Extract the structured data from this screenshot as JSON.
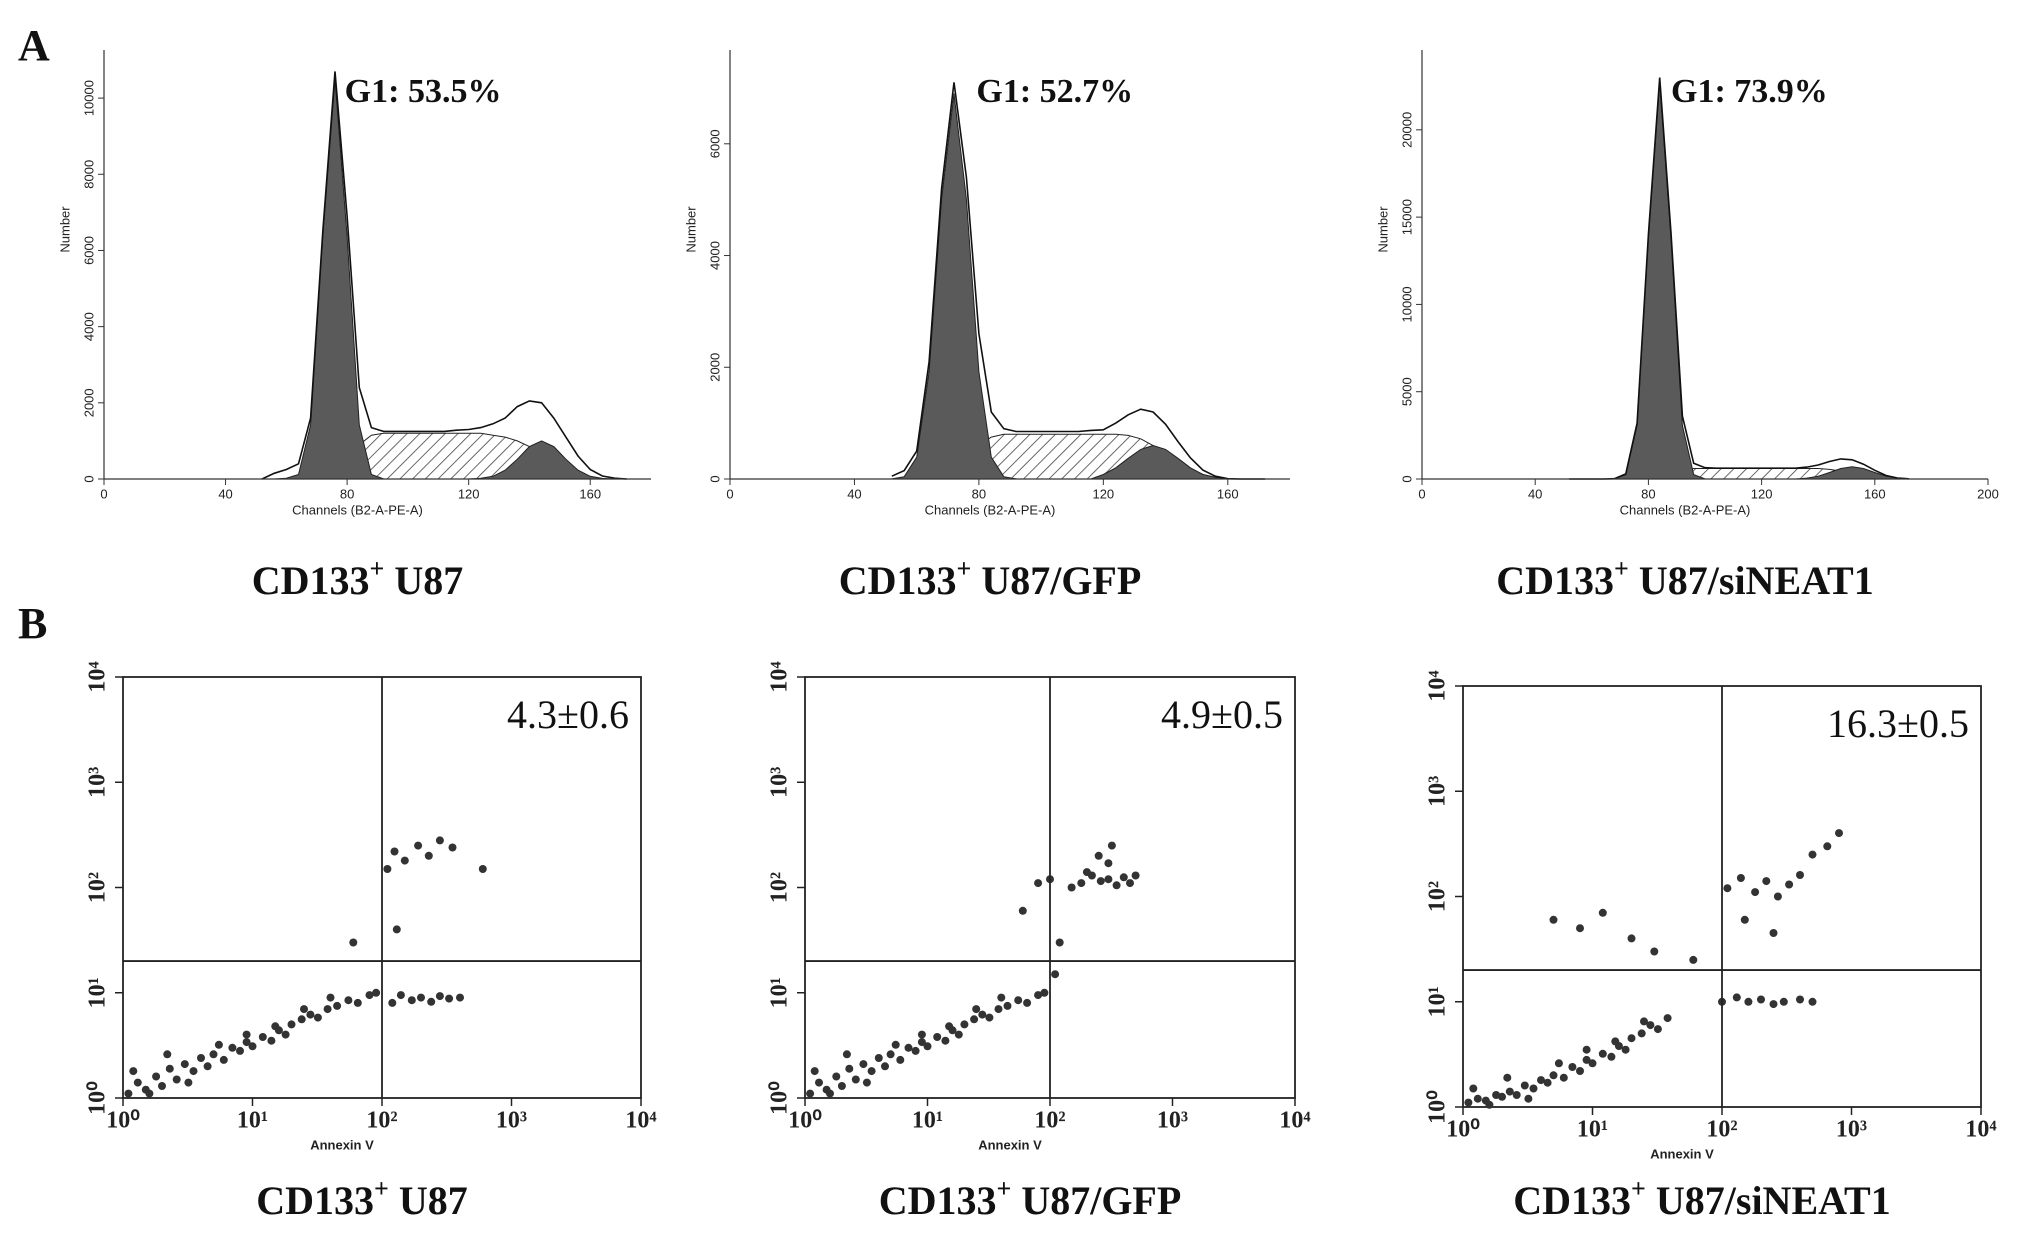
{
  "panel_labels": {
    "a": "A",
    "b": "B"
  },
  "chart_data": [
    {
      "type": "area",
      "annotation": "G1: 53.5%",
      "caption": {
        "text": "CD133",
        "sup": "+",
        "suffix": " U87"
      },
      "xlabel": "Channels (B2-A-PE-A)",
      "ylabel": "Number",
      "xlim": [
        0,
        180
      ],
      "xticks": [
        0,
        40,
        80,
        120,
        160
      ],
      "ylim": [
        0,
        11000
      ],
      "yticks": [
        0,
        2000,
        4000,
        6000,
        8000,
        10000
      ],
      "x": [
        52,
        56,
        60,
        64,
        68,
        72,
        76,
        80,
        84,
        88,
        92,
        96,
        100,
        104,
        108,
        112,
        116,
        120,
        124,
        128,
        132,
        136,
        140,
        144,
        148,
        152,
        156,
        160,
        164,
        168,
        172
      ],
      "series": [
        {
          "fill": "hatch",
          "color": "#444444",
          "values": [
            0,
            0,
            0,
            0,
            0,
            50,
            200,
            500,
            900,
            1150,
            1200,
            1200,
            1200,
            1200,
            1200,
            1200,
            1200,
            1200,
            1200,
            1150,
            1100,
            1000,
            850,
            650,
            450,
            250,
            100,
            30,
            0,
            0,
            0
          ]
        },
        {
          "fill": "solid",
          "color": "#5a5a5a",
          "values": [
            0,
            0,
            20,
            117,
            1420,
            6370,
            10500,
            6370,
            1420,
            117,
            3,
            0,
            0,
            0,
            0,
            0,
            0,
            0,
            0,
            0,
            0,
            0,
            0,
            0,
            0,
            0,
            0,
            0,
            0,
            0,
            0
          ]
        },
        {
          "fill": "solid",
          "color": "#5a5a5a",
          "values": [
            0,
            0,
            0,
            0,
            0,
            0,
            0,
            0,
            0,
            0,
            0,
            0,
            0,
            0,
            0,
            0,
            0,
            0,
            20,
            70,
            230,
            520,
            850,
            1000,
            850,
            520,
            230,
            70,
            15,
            0,
            0
          ]
        },
        {
          "fill": "none",
          "color": "#111111",
          "values": [
            0,
            150,
            250,
            400,
            1600,
            6500,
            10700,
            6900,
            2400,
            1350,
            1250,
            1250,
            1250,
            1250,
            1250,
            1250,
            1280,
            1300,
            1350,
            1450,
            1600,
            1900,
            2050,
            2000,
            1600,
            1100,
            600,
            250,
            80,
            20,
            0
          ]
        }
      ]
    },
    {
      "type": "area",
      "annotation": "G1: 52.7%",
      "caption": {
        "text": "CD133",
        "sup": "+",
        "suffix": " U87/GFP"
      },
      "xlabel": "Channels (B2-A-PE-A)",
      "ylabel": "Number",
      "xlim": [
        0,
        180
      ],
      "xticks": [
        0,
        40,
        80,
        120,
        160
      ],
      "ylim": [
        0,
        7500
      ],
      "yticks": [
        0,
        2000,
        4000,
        6000
      ],
      "x": [
        52,
        56,
        60,
        64,
        68,
        72,
        76,
        80,
        84,
        88,
        92,
        96,
        100,
        104,
        108,
        112,
        116,
        120,
        124,
        128,
        132,
        136,
        140,
        144,
        148,
        152,
        156,
        160,
        164,
        168,
        172
      ],
      "series": [
        {
          "fill": "hatch",
          "color": "#444444",
          "values": [
            0,
            0,
            0,
            0,
            0,
            100,
            300,
            600,
            750,
            800,
            800,
            800,
            800,
            800,
            800,
            800,
            800,
            800,
            800,
            780,
            720,
            600,
            450,
            300,
            180,
            80,
            20,
            0,
            0,
            0,
            0
          ]
        },
        {
          "fill": "solid",
          "color": "#5a5a5a",
          "values": [
            2,
            41,
            390,
            1920,
            5010,
            6900,
            5010,
            1920,
            390,
            41,
            2,
            0,
            0,
            0,
            0,
            0,
            0,
            0,
            0,
            0,
            0,
            0,
            0,
            0,
            0,
            0,
            0,
            0,
            0,
            0,
            0
          ]
        },
        {
          "fill": "solid",
          "color": "#5a5a5a",
          "values": [
            0,
            0,
            0,
            0,
            0,
            0,
            0,
            0,
            0,
            0,
            0,
            0,
            0,
            0,
            0,
            0,
            0,
            80,
            200,
            370,
            530,
            600,
            530,
            370,
            200,
            80,
            30,
            5,
            0,
            0,
            0
          ]
        },
        {
          "fill": "none",
          "color": "#111111",
          "values": [
            50,
            150,
            500,
            2100,
            5200,
            7100,
            5400,
            2600,
            1200,
            900,
            850,
            850,
            850,
            850,
            850,
            850,
            870,
            880,
            1000,
            1150,
            1250,
            1200,
            980,
            670,
            380,
            160,
            50,
            5,
            0,
            0,
            0
          ]
        }
      ]
    },
    {
      "type": "area",
      "annotation": "G1: 73.9%",
      "caption": {
        "text": "CD133",
        "sup": "+",
        "suffix": " U87/siNEAT1"
      },
      "xlabel": "Channels (B2-A-PE-A)",
      "ylabel": "Number",
      "xlim": [
        0,
        200
      ],
      "xticks": [
        0,
        40,
        80,
        120,
        160,
        200
      ],
      "ylim": [
        0,
        24000
      ],
      "yticks": [
        0,
        5000,
        10000,
        15000,
        20000
      ],
      "x": [
        52,
        56,
        60,
        64,
        68,
        72,
        76,
        80,
        84,
        88,
        92,
        96,
        100,
        104,
        108,
        112,
        116,
        120,
        124,
        128,
        132,
        136,
        140,
        144,
        148,
        152,
        156,
        160,
        164,
        168,
        172
      ],
      "series": [
        {
          "fill": "hatch",
          "color": "#444444",
          "values": [
            0,
            0,
            0,
            0,
            0,
            0,
            0,
            0,
            100,
            300,
            500,
            600,
            600,
            600,
            600,
            600,
            600,
            600,
            600,
            600,
            600,
            600,
            600,
            550,
            450,
            300,
            150,
            50,
            0,
            0,
            0
          ]
        },
        {
          "fill": "solid",
          "color": "#5a5a5a",
          "values": [
            0,
            0,
            0,
            0,
            8,
            250,
            3070,
            13770,
            22700,
            13770,
            3070,
            250,
            8,
            0,
            0,
            0,
            0,
            0,
            0,
            0,
            0,
            0,
            0,
            0,
            0,
            0,
            0,
            0,
            0,
            0,
            0
          ]
        },
        {
          "fill": "solid",
          "color": "#5a5a5a",
          "values": [
            0,
            0,
            0,
            0,
            0,
            0,
            0,
            0,
            0,
            0,
            0,
            0,
            0,
            0,
            0,
            0,
            0,
            0,
            0,
            0,
            0,
            50,
            160,
            370,
            600,
            700,
            600,
            370,
            160,
            50,
            10
          ]
        },
        {
          "fill": "none",
          "color": "#111111",
          "values": [
            0,
            0,
            0,
            0,
            20,
            300,
            3200,
            14000,
            23000,
            14100,
            3600,
            900,
            650,
            620,
            620,
            620,
            620,
            620,
            620,
            620,
            620,
            680,
            800,
            1000,
            1150,
            1100,
            850,
            500,
            200,
            60,
            10
          ]
        }
      ]
    },
    {
      "type": "scatter",
      "annotation": "4.3±0.6",
      "caption": {
        "text": "CD133",
        "sup": "+",
        "suffix": " U87"
      },
      "xlabel": "Annexin V",
      "xscale": "log",
      "yscale": "log",
      "color": "#333333",
      "xlim": [
        1,
        10000
      ],
      "ylim": [
        1,
        10000
      ],
      "xticks": [
        {
          "value": 1,
          "label": "10⁰"
        },
        {
          "value": 10,
          "label": "10¹"
        },
        {
          "value": 100,
          "label": "10²"
        },
        {
          "value": 1000,
          "label": "10³"
        },
        {
          "value": 10000,
          "label": "10⁴"
        }
      ],
      "yticks": [
        {
          "value": 1,
          "label": "10⁰"
        },
        {
          "value": 10,
          "label": "10¹"
        },
        {
          "value": 100,
          "label": "10²"
        },
        {
          "value": 1000,
          "label": "10³"
        },
        {
          "value": 10000,
          "label": "10⁴"
        }
      ],
      "gate": {
        "x": 100,
        "y": 20
      },
      "x": [
        1.1,
        1.3,
        1.5,
        1.8,
        2,
        2.3,
        2.6,
        3,
        3.5,
        4,
        4.5,
        5,
        6,
        7,
        8,
        9,
        10,
        12,
        14,
        16,
        18,
        20,
        24,
        28,
        32,
        38,
        45,
        55,
        65,
        80,
        90,
        1.2,
        1.6,
        2.2,
        3.2,
        5.5,
        9,
        15,
        25,
        40,
        120,
        140,
        170,
        200,
        240,
        280,
        330,
        400,
        110,
        125,
        150,
        190,
        230,
        280,
        350,
        130,
        60,
        600
      ],
      "y": [
        1.1,
        1.4,
        1.2,
        1.6,
        1.3,
        1.9,
        1.5,
        2.1,
        1.8,
        2.4,
        2,
        2.6,
        2.3,
        3,
        2.8,
        3.4,
        3.1,
        3.8,
        3.5,
        4.4,
        4,
        5,
        5.6,
        6.2,
        5.8,
        7,
        7.5,
        8.5,
        8,
        9.5,
        10,
        1.8,
        1.1,
        2.6,
        1.4,
        3.2,
        4,
        4.8,
        7,
        9,
        8,
        9.5,
        8.5,
        9,
        8.2,
        9.3,
        8.8,
        9,
        150,
        220,
        180,
        250,
        200,
        280,
        240,
        40,
        30,
        150
      ]
    },
    {
      "type": "scatter",
      "annotation": "4.9±0.5",
      "caption": {
        "text": "CD133",
        "sup": "+",
        "suffix": " U87/GFP"
      },
      "xlabel": "Annexin V",
      "xscale": "log",
      "yscale": "log",
      "color": "#333333",
      "xlim": [
        1,
        10000
      ],
      "ylim": [
        1,
        10000
      ],
      "xticks": [
        {
          "value": 1,
          "label": "10⁰"
        },
        {
          "value": 10,
          "label": "10¹"
        },
        {
          "value": 100,
          "label": "10²"
        },
        {
          "value": 1000,
          "label": "10³"
        },
        {
          "value": 10000,
          "label": "10⁴"
        }
      ],
      "yticks": [
        {
          "value": 1,
          "label": "10⁰"
        },
        {
          "value": 10,
          "label": "10¹"
        },
        {
          "value": 100,
          "label": "10²"
        },
        {
          "value": 1000,
          "label": "10³"
        },
        {
          "value": 10000,
          "label": "10⁴"
        }
      ],
      "gate": {
        "x": 100,
        "y": 20
      },
      "x": [
        1.1,
        1.3,
        1.5,
        1.8,
        2,
        2.3,
        2.6,
        3,
        3.5,
        4,
        4.5,
        5,
        6,
        7,
        8,
        9,
        10,
        12,
        14,
        16,
        18,
        20,
        24,
        28,
        32,
        38,
        45,
        55,
        65,
        80,
        90,
        1.2,
        1.6,
        2.2,
        3.2,
        5.5,
        9,
        15,
        25,
        40,
        180,
        220,
        260,
        300,
        350,
        400,
        450,
        250,
        300,
        200,
        320,
        500,
        150,
        80,
        100,
        60,
        120,
        110
      ],
      "y": [
        1.1,
        1.4,
        1.2,
        1.6,
        1.3,
        1.9,
        1.5,
        2.1,
        1.8,
        2.4,
        2,
        2.6,
        2.3,
        3,
        2.8,
        3.4,
        3.1,
        3.8,
        3.5,
        4.4,
        4,
        5,
        5.6,
        6.2,
        5.8,
        7,
        7.5,
        8.5,
        8,
        9.5,
        10,
        1.8,
        1.1,
        2.6,
        1.4,
        3.2,
        4,
        4.8,
        7,
        9,
        110,
        130,
        115,
        120,
        105,
        125,
        110,
        200,
        170,
        140,
        250,
        130,
        100,
        110,
        120,
        60,
        30,
        15
      ]
    },
    {
      "type": "scatter",
      "annotation": "16.3±0.5",
      "caption": {
        "text": "CD133",
        "sup": "+",
        "suffix": " U87/siNEAT1"
      },
      "xlabel": "Annexin V",
      "xscale": "log",
      "yscale": "log",
      "color": "#333333",
      "xlim": [
        1,
        10000
      ],
      "ylim": [
        1,
        10000
      ],
      "xticks": [
        {
          "value": 1,
          "label": "10⁰"
        },
        {
          "value": 10,
          "label": "10¹"
        },
        {
          "value": 100,
          "label": "10²"
        },
        {
          "value": 1000,
          "label": "10³"
        },
        {
          "value": 10000,
          "label": "10⁴"
        }
      ],
      "yticks": [
        {
          "value": 1,
          "label": "10⁰"
        },
        {
          "value": 10,
          "label": "10¹"
        },
        {
          "value": 100,
          "label": "10²"
        },
        {
          "value": 1000,
          "label": "10³"
        },
        {
          "value": 10000,
          "label": "10⁴"
        }
      ],
      "gate": {
        "x": 100,
        "y": 20
      },
      "x": [
        1.1,
        1.3,
        1.5,
        1.8,
        2,
        2.3,
        2.6,
        3,
        3.5,
        4,
        4.5,
        5,
        6,
        7,
        8,
        9,
        10,
        12,
        14,
        16,
        18,
        20,
        24,
        28,
        32,
        38,
        1.2,
        1.6,
        2.2,
        3.2,
        5.5,
        9,
        15,
        25,
        100,
        130,
        160,
        200,
        250,
        300,
        400,
        500,
        110,
        140,
        180,
        220,
        270,
        330,
        400,
        500,
        650,
        800,
        150,
        250,
        8,
        12,
        20,
        5,
        30,
        60
      ],
      "y": [
        1.1,
        1.2,
        1.15,
        1.3,
        1.25,
        1.4,
        1.3,
        1.6,
        1.5,
        1.8,
        1.7,
        2,
        1.9,
        2.4,
        2.2,
        2.8,
        2.6,
        3.2,
        3,
        3.8,
        3.5,
        4.5,
        5,
        6,
        5.5,
        7,
        1.5,
        1.05,
        1.9,
        1.2,
        2.6,
        3.5,
        4.2,
        6.5,
        10,
        11,
        10,
        10.5,
        9.5,
        10,
        10.5,
        10,
        120,
        150,
        110,
        140,
        100,
        130,
        160,
        250,
        300,
        400,
        60,
        45,
        50,
        70,
        40,
        60,
        30,
        25
      ]
    }
  ]
}
